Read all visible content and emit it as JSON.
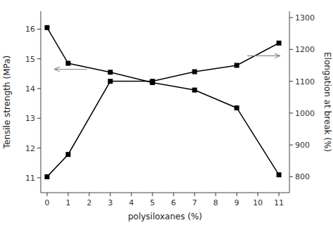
{
  "chart_data": {
    "type": "line",
    "x": [
      0,
      1,
      3,
      5,
      7,
      9,
      11
    ],
    "xlabel": "polysiloxanes (%)",
    "ylabel": "Tensile strength (MPa)",
    "y2label": "Elongation at break (%)",
    "xlim": [
      -0.3,
      11.5
    ],
    "xticks": [
      0,
      1,
      2,
      3,
      4,
      5,
      6,
      7,
      8,
      9,
      10,
      11
    ],
    "ylim": [
      10.5,
      16.6
    ],
    "yticks": [
      11,
      12,
      13,
      14,
      15,
      16
    ],
    "y2lim": [
      750,
      1320
    ],
    "y2ticks": [
      800,
      900,
      1000,
      1100,
      1200,
      1300
    ],
    "grid": false,
    "series": [
      {
        "color": "#000000",
        "marker": "square",
        "values": [
          16.05,
          14.85,
          14.55,
          14.2,
          13.95,
          13.35,
          11.1
        ]
      },
      {
        "color": "#000000",
        "marker": "square",
        "axis": "y2",
        "values": [
          800,
          870,
          1100,
          1100,
          1130,
          1150,
          1220
        ]
      }
    ],
    "annotations": [
      {
        "type": "arrow",
        "x_start": 1.9,
        "x_end": 0.35,
        "y": 14.65
      },
      {
        "type": "arrow",
        "x_start": 9.5,
        "x_end": 11.05,
        "y": 15.1
      }
    ]
  }
}
